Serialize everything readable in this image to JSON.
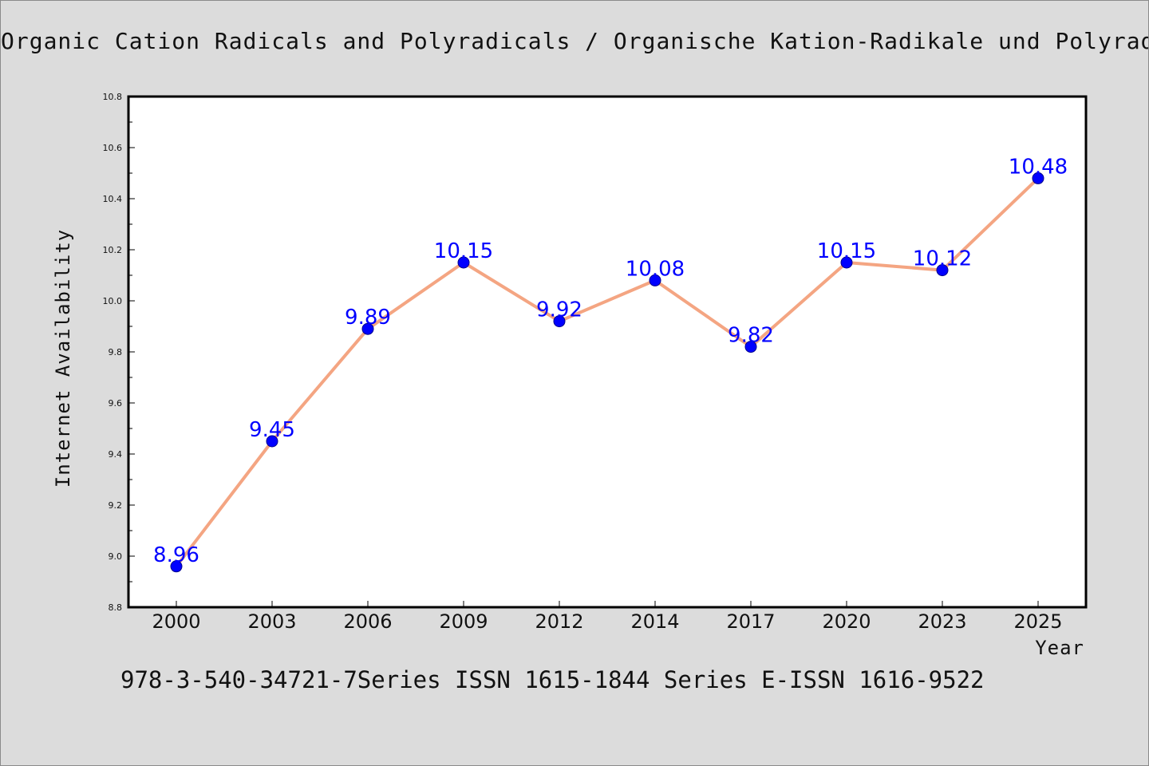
{
  "title": "Organic Cation Radicals and Polyradicals / Organische Kation-Radikale und Polyradikale",
  "footer": "978-3-540-34721-7Series ISSN 1615-1844 Series E-ISSN 1616-9522",
  "colors": {
    "line": "#f4a582",
    "marker": "#0000ff",
    "label": "#0000ff",
    "plot_bg": "#ffffff",
    "page_bg": "#dcdcdc"
  },
  "chart_data": {
    "type": "line",
    "categories": [
      "2000",
      "2003",
      "2006",
      "2009",
      "2012",
      "2014",
      "2017",
      "2020",
      "2023",
      "2025"
    ],
    "series": [
      {
        "values": [
          8.96,
          9.45,
          9.89,
          10.15,
          9.92,
          10.08,
          9.82,
          10.15,
          10.12,
          10.48
        ]
      }
    ],
    "data_labels": [
      "8.96",
      "9.45",
      "9.89",
      "10.15",
      "9.92",
      "10.08",
      "9.82",
      "10.15",
      "10.12",
      "10.48"
    ],
    "xlabel": "Year",
    "ylabel": "Internet Availability",
    "ylim": [
      8.8,
      10.8
    ],
    "yticks": [
      "8.8",
      "9.0",
      "9.2",
      "9.4",
      "9.6",
      "9.8",
      "10.0",
      "10.2",
      "10.4",
      "10.6",
      "10.8"
    ],
    "grid": false,
    "legend": "none"
  }
}
